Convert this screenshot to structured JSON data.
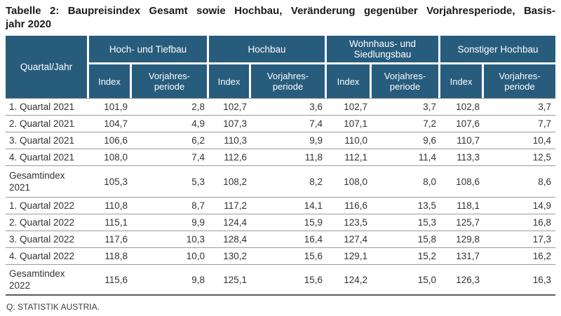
{
  "title": {
    "line1": "Tabelle 2: Baupreisindex Gesamt sowie Hochbau, Veränderung gegenüber Vorjahresperiode, Basis-",
    "line2": "jahr 2020"
  },
  "table": {
    "corner_label": "Quartal/Jahr",
    "groups": [
      {
        "label": "Hoch- und Tiefbau"
      },
      {
        "label": "Hochbau"
      },
      {
        "label": "Wohnhaus- und\nSiedlungsbau"
      },
      {
        "label": "Sonstiger Hochbau"
      }
    ],
    "subheaders": {
      "index": "Index",
      "vorjahresperiode": "Vorjahres-\nperiode"
    },
    "rows": [
      {
        "type": "quarter",
        "label": "1. Quartal 2021",
        "values": [
          "101,9",
          "2,8",
          "102,7",
          "3,6",
          "102,7",
          "3,7",
          "102,8",
          "3,7"
        ]
      },
      {
        "type": "quarter",
        "label": "2. Quartal 2021",
        "values": [
          "104,7",
          "4,9",
          "107,3",
          "7,4",
          "107,1",
          "7,2",
          "107,6",
          "7,7"
        ]
      },
      {
        "type": "quarter",
        "label": "3. Quartal 2021",
        "values": [
          "106,6",
          "6,2",
          "110,3",
          "9,9",
          "110,0",
          "9,6",
          "110,7",
          "10,4"
        ]
      },
      {
        "type": "quarter",
        "label": "4. Quartal 2021",
        "values": [
          "108,0",
          "7,4",
          "112,6",
          "11,8",
          "112,1",
          "11,4",
          "113,3",
          "12,5"
        ]
      },
      {
        "type": "total",
        "label": "Gesamtindex\n2021",
        "values": [
          "105,3",
          "5,3",
          "108,2",
          "8,2",
          "108,0",
          "8,0",
          "108,6",
          "8,6"
        ]
      },
      {
        "type": "quarter",
        "label": "1. Quartal 2022",
        "values": [
          "110,8",
          "8,7",
          "117,2",
          "14,1",
          "116,6",
          "13,5",
          "118,1",
          "14,9"
        ]
      },
      {
        "type": "quarter",
        "label": "2. Quartal 2022",
        "values": [
          "115,1",
          "9,9",
          "124,4",
          "15,9",
          "123,5",
          "15,3",
          "125,7",
          "16,8"
        ]
      },
      {
        "type": "quarter",
        "label": "3. Quartal 2022",
        "values": [
          "117,6",
          "10,3",
          "128,4",
          "16,4",
          "127,4",
          "15,8",
          "129,8",
          "17,3"
        ]
      },
      {
        "type": "quarter",
        "label": "4. Quartal 2022",
        "values": [
          "118,8",
          "10,0",
          "130,2",
          "15,6",
          "129,1",
          "15,2",
          "131,7",
          "16,2"
        ]
      },
      {
        "type": "total",
        "label": "Gesamtindex\n2022",
        "values": [
          "115,6",
          "9,8",
          "125,1",
          "15,6",
          "124,2",
          "15,0",
          "126,3",
          "16,3"
        ]
      }
    ]
  },
  "footer": {
    "source": "Q: STATISTIK AUSTRIA."
  },
  "colors": {
    "header_bg": "#275C7D",
    "header_text": "#FFFFFF",
    "row_separator": "#9B9B9B",
    "table_bottom": "#5A5A5A",
    "text": "#333333",
    "title_text": "#1A1A1A"
  }
}
